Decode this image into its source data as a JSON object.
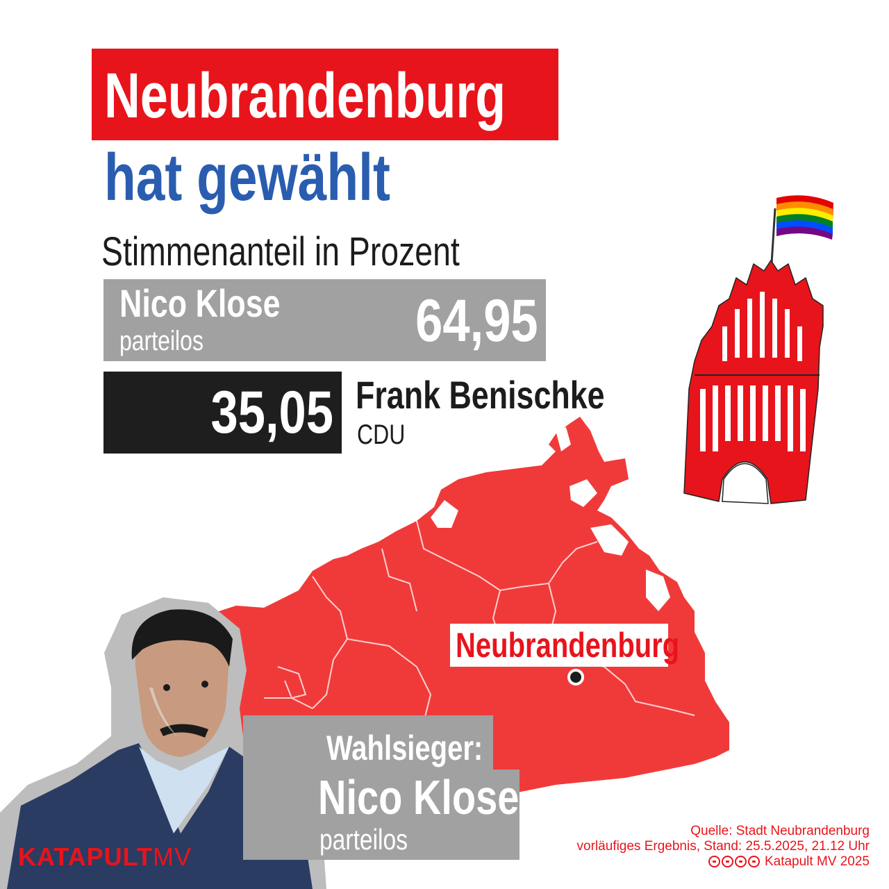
{
  "title": "Neubrandenburg",
  "subtitle": "hat gewählt",
  "chart_data": {
    "type": "bar",
    "title": "Stimmenanteil in Prozent",
    "categories": [
      "Nico Klose",
      "Frank Benischke"
    ],
    "parties": [
      "parteilos",
      "CDU"
    ],
    "values": [
      64.95,
      35.05
    ],
    "value_labels": [
      "64,95",
      "35,05"
    ],
    "colors": [
      "#a1a1a1",
      "#1e1e1e"
    ]
  },
  "map": {
    "city_label": "Neubrandenburg",
    "fill_color": "#f03a3a"
  },
  "winner": {
    "label": "Wahlsieger:",
    "name": "Nico Klose",
    "party": "parteilos"
  },
  "logo": {
    "part1": "KATAPULT",
    "part2": "MV"
  },
  "source": {
    "line1": "Quelle: Stadt Neubrandenburg",
    "line2": "vorläufiges Ergebnis, Stand: 25.5.2025, 21.12 Uhr",
    "line3": "Katapult MV 2025"
  },
  "colors": {
    "red": "#e8141b",
    "blue": "#2a5db0",
    "gray": "#a1a1a1",
    "black": "#1e1e1e"
  },
  "icons": [
    "rainbow-flag-icon",
    "city-gate-icon",
    "city-dot-icon",
    "license-icon"
  ]
}
